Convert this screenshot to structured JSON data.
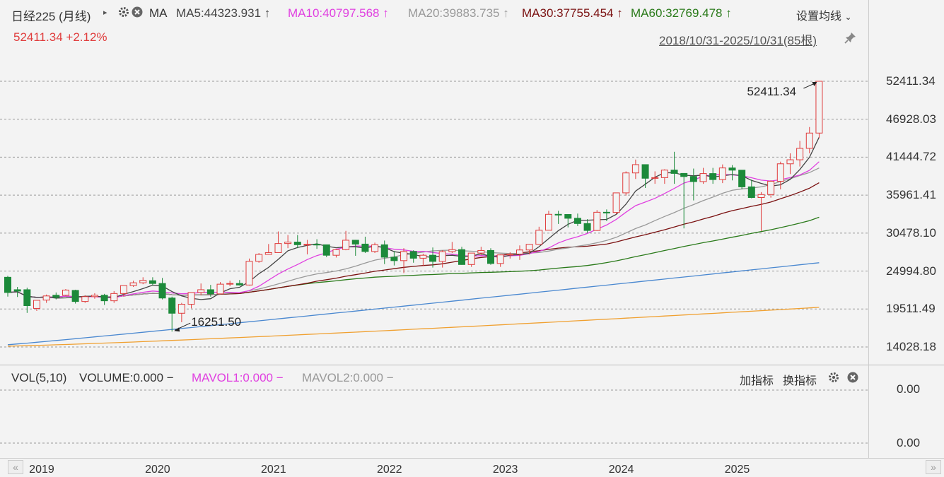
{
  "header": {
    "title": "日经225 (月线)",
    "ma_label": "MA",
    "ma_items": [
      {
        "text": "MA5:44323.931",
        "color": "#444444"
      },
      {
        "text": "MA10:40797.568",
        "color": "#e040e0"
      },
      {
        "text": "MA20:39883.735",
        "color": "#999999"
      },
      {
        "text": "MA30:37755.454",
        "color": "#7a1010"
      },
      {
        "text": "MA60:32769.478",
        "color": "#2a7a1a"
      }
    ],
    "arrow": "↑",
    "settings_label": "设置均线",
    "last_price": "52411.34",
    "change_pct": "+2.12%",
    "date_range": "2018/10/31-2025/10/31(85根)"
  },
  "volume_panel": {
    "title": "VOL(5,10)",
    "volume": "VOLUME:0.000",
    "mavol1": "MAVOL1:0.000",
    "mavol2": "MAVOL2:0.000",
    "dash": "−",
    "add_indicator": "加指标",
    "switch_indicator": "换指标",
    "y_ticks": [
      "0.00",
      "0.00"
    ]
  },
  "colors": {
    "up": "#e03c3c",
    "down": "#1c8a3a",
    "ma5": "#444444",
    "ma10": "#e040e0",
    "ma20": "#999999",
    "ma30": "#7a1010",
    "ma60": "#2a7a1a",
    "long1": "#4a88d0",
    "long2": "#f0a030"
  },
  "chart_data": {
    "type": "candlestick",
    "period": "monthly",
    "y_ticks": [
      "52411.34",
      "46928.03",
      "41444.72",
      "35961.41",
      "30478.10",
      "24994.80",
      "19511.49",
      "14028.18"
    ],
    "ylim": [
      14028.18,
      52411.34
    ],
    "x_ticks": [
      "2019",
      "2020",
      "2021",
      "2022",
      "2023",
      "2024",
      "2025"
    ],
    "annotations": [
      {
        "text": "52411.34",
        "x": "2025/10",
        "y": 52411.34
      },
      {
        "text": "16251.50",
        "x": "2020/03",
        "y": 16251.5
      }
    ],
    "candles": [
      [
        "2018/10",
        21900,
        24300,
        21300,
        24100
      ],
      [
        "2018/11",
        22100,
        22700,
        21250,
        22300
      ],
      [
        "2018/12",
        20000,
        22600,
        18950,
        22300
      ],
      [
        "2019/01",
        20770,
        20800,
        19240,
        19600
      ],
      [
        "2019/02",
        21400,
        21600,
        20400,
        20800
      ],
      [
        "2019/03",
        21200,
        21900,
        20900,
        21500
      ],
      [
        "2019/04",
        22250,
        22400,
        21400,
        21500
      ],
      [
        "2019/05",
        20600,
        22300,
        20300,
        22200
      ],
      [
        "2019/06",
        21300,
        21500,
        20400,
        20600
      ],
      [
        "2019/07",
        21500,
        21800,
        21000,
        21300
      ],
      [
        "2019/08",
        20700,
        21700,
        20100,
        21500
      ],
      [
        "2019/09",
        21750,
        22100,
        20400,
        20700
      ],
      [
        "2019/10",
        22900,
        22900,
        21300,
        21750
      ],
      [
        "2019/11",
        23300,
        23600,
        22700,
        22900
      ],
      [
        "2019/12",
        23650,
        24100,
        23100,
        23300
      ],
      [
        "2020/01",
        23200,
        24100,
        22900,
        23600
      ],
      [
        "2020/02",
        21100,
        24000,
        20900,
        23200
      ],
      [
        "2020/03",
        18900,
        21300,
        16251.5,
        21100
      ],
      [
        "2020/04",
        20200,
        20400,
        17600,
        18900
      ],
      [
        "2020/05",
        21900,
        21900,
        19600,
        20200
      ],
      [
        "2020/06",
        22300,
        23200,
        21500,
        21900
      ],
      [
        "2020/07",
        21700,
        23000,
        21300,
        22300
      ],
      [
        "2020/08",
        23100,
        23400,
        21700,
        21700
      ],
      [
        "2020/09",
        23200,
        23600,
        22800,
        23100
      ],
      [
        "2020/10",
        22977,
        23700,
        22900,
        23200
      ],
      [
        "2020/11",
        26400,
        26800,
        22900,
        22977
      ],
      [
        "2020/12",
        27400,
        27600,
        26200,
        26400
      ],
      [
        "2021/01",
        27660,
        28900,
        27400,
        27400
      ],
      [
        "2021/02",
        28970,
        30714,
        27700,
        27660
      ],
      [
        "2021/03",
        29180,
        30200,
        28300,
        28970
      ],
      [
        "2021/04",
        28800,
        30200,
        28300,
        29180
      ],
      [
        "2021/05",
        28860,
        29500,
        27400,
        28800
      ],
      [
        "2021/06",
        28790,
        29600,
        28200,
        28860
      ],
      [
        "2021/07",
        27280,
        28800,
        27000,
        28790
      ],
      [
        "2021/08",
        28090,
        28200,
        26950,
        27280
      ],
      [
        "2021/09",
        29450,
        30800,
        28000,
        28090
      ],
      [
        "2021/10",
        28890,
        29500,
        27200,
        29450
      ],
      [
        "2021/11",
        27820,
        29960,
        27600,
        28890
      ],
      [
        "2021/12",
        28790,
        29100,
        27600,
        27820
      ],
      [
        "2022/01",
        27000,
        29400,
        26000,
        28790
      ],
      [
        "2022/02",
        26500,
        27900,
        25800,
        27000
      ],
      [
        "2022/03",
        27820,
        28300,
        24700,
        26500
      ],
      [
        "2022/04",
        26850,
        28000,
        26200,
        27820
      ],
      [
        "2022/05",
        27280,
        27500,
        25700,
        26850
      ],
      [
        "2022/06",
        26390,
        28400,
        25500,
        27280
      ],
      [
        "2022/07",
        27800,
        28000,
        25500,
        26390
      ],
      [
        "2022/08",
        28090,
        29200,
        27600,
        27800
      ],
      [
        "2022/09",
        25940,
        28500,
        25900,
        28090
      ],
      [
        "2022/10",
        27590,
        27600,
        25600,
        25940
      ],
      [
        "2022/11",
        27970,
        28500,
        27300,
        27590
      ],
      [
        "2022/12",
        26090,
        28300,
        25900,
        27970
      ],
      [
        "2023/01",
        27330,
        27400,
        25600,
        26090
      ],
      [
        "2023/02",
        27450,
        27700,
        26800,
        27330
      ],
      [
        "2023/03",
        28040,
        28700,
        26600,
        27450
      ],
      [
        "2023/04",
        28860,
        28900,
        27400,
        28040
      ],
      [
        "2023/05",
        30890,
        31400,
        28800,
        28860
      ],
      [
        "2023/06",
        33190,
        33700,
        30900,
        30890
      ],
      [
        "2023/07",
        33170,
        33700,
        31800,
        33190
      ],
      [
        "2023/08",
        32620,
        33200,
        31300,
        33170
      ],
      [
        "2023/09",
        31860,
        33300,
        31500,
        32620
      ],
      [
        "2023/10",
        30860,
        32500,
        30500,
        31860
      ],
      [
        "2023/11",
        33490,
        33800,
        30800,
        30860
      ],
      [
        "2023/12",
        33460,
        33900,
        32200,
        33490
      ],
      [
        "2024/01",
        36290,
        36300,
        33200,
        33460
      ],
      [
        "2024/02",
        39170,
        39400,
        35900,
        36290
      ],
      [
        "2024/03",
        40370,
        41100,
        38300,
        39170
      ],
      [
        "2024/04",
        38400,
        40400,
        37000,
        40370
      ],
      [
        "2024/05",
        38490,
        39400,
        37600,
        38400
      ],
      [
        "2024/06",
        39580,
        39700,
        37600,
        38490
      ],
      [
        "2024/07",
        39100,
        42224,
        37600,
        39580
      ],
      [
        "2024/08",
        38650,
        39100,
        31156,
        39100
      ],
      [
        "2024/09",
        37920,
        39800,
        35200,
        38650
      ],
      [
        "2024/10",
        39080,
        39900,
        37600,
        37920
      ],
      [
        "2024/11",
        38210,
        39900,
        37600,
        39080
      ],
      [
        "2024/12",
        39890,
        40400,
        37700,
        38210
      ],
      [
        "2025/01",
        39570,
        40300,
        38100,
        39890
      ],
      [
        "2025/02",
        37160,
        39500,
        36800,
        39570
      ],
      [
        "2025/03",
        35620,
        38200,
        35500,
        37160
      ],
      [
        "2025/04",
        36050,
        36400,
        30792,
        35620
      ],
      [
        "2025/05",
        37970,
        38100,
        35600,
        36050
      ],
      [
        "2025/06",
        40490,
        40800,
        36800,
        37970
      ],
      [
        "2025/07",
        41070,
        42000,
        39000,
        40490
      ],
      [
        "2025/08",
        42720,
        43800,
        40100,
        41070
      ],
      [
        "2025/09",
        44930,
        45800,
        42000,
        42720
      ],
      [
        "2025/10",
        52411.34,
        52411.34,
        44200,
        44930
      ]
    ]
  }
}
